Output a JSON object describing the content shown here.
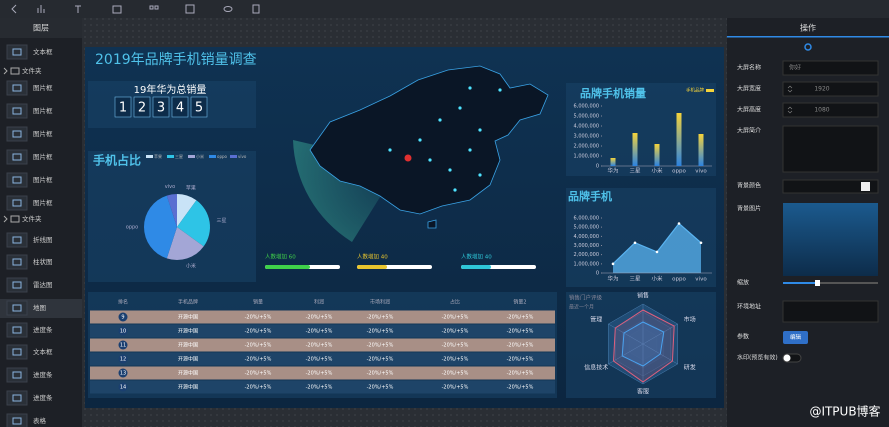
{
  "layers": {
    "title": "图层",
    "items": [
      "文本框",
      "文件夹",
      "图片框",
      "图片框",
      "图片框",
      "图片框",
      "图片框",
      "图片框",
      "文件夹",
      "折线图",
      "柱状图",
      "雷达图",
      "地图",
      "进度条",
      "文本框",
      "进度条",
      "进度条",
      "表格"
    ]
  },
  "settings": {
    "title": "操作",
    "fields": [
      {
        "label": "大屏名称",
        "value": "你好"
      },
      {
        "label": "大屏宽度",
        "value": 1920
      },
      {
        "label": "大屏高度",
        "value": 1080
      },
      {
        "label": "大屏简介"
      },
      {
        "label": "背景颜色"
      },
      {
        "label": "背景图片"
      },
      {
        "label": "缩放"
      },
      {
        "label": "环境地址"
      },
      {
        "label": "参数",
        "button": "编辑"
      },
      {
        "label": "水印(预览有效)"
      }
    ]
  },
  "dashboard": {
    "title": "2019年品牌手机销量调查",
    "counter": {
      "title": "19年华为总销量",
      "digits": [
        1,
        2,
        3,
        4,
        5
      ]
    },
    "progress": [
      {
        "label": "人数增加 60",
        "value": 60,
        "color": "#3fd14a"
      },
      {
        "label": "人数增加 40",
        "value": 40,
        "color": "#e8c52e"
      },
      {
        "label": "人数增加 40",
        "value": 40,
        "color": "#2ec6d8"
      }
    ],
    "table": {
      "headers": [
        "排名",
        "手机品牌",
        "销量",
        "利润",
        "市场利润",
        "占比",
        "销量2"
      ],
      "rows": [
        [
          9,
          "开源中国",
          "-20%/+5%",
          "-20%/+5%",
          "-20%/+5%",
          "-20%/+5%",
          "-20%/+5%"
        ],
        [
          10,
          "开源中国",
          "-20%/+5%",
          "-20%/+5%",
          "-20%/+5%",
          "-20%/+5%",
          "-20%/+5%"
        ],
        [
          11,
          "开源中国",
          "-20%/+5%",
          "-20%/+5%",
          "-20%/+5%",
          "-20%/+5%",
          "-20%/+5%"
        ],
        [
          12,
          "开源中国",
          "-20%/+5%",
          "-20%/+5%",
          "-20%/+5%",
          "-20%/+5%",
          "-20%/+5%"
        ],
        [
          13,
          "开源中国",
          "-20%/+5%",
          "-20%/+5%",
          "-20%/+5%",
          "-20%/+5%",
          "-20%/+5%"
        ],
        [
          14,
          "开源中国",
          "-20%/+5%",
          "-20%/+5%",
          "-20%/+5%",
          "-20%/+5%",
          "-20%/+5%"
        ]
      ]
    }
  },
  "watermark": "@ITPUB博客",
  "chart_data": [
    {
      "type": "pie",
      "title": "手机占比",
      "categories": [
        "苹果",
        "三星",
        "小米",
        "oppo",
        "vivo"
      ],
      "values": [
        10,
        25,
        20,
        40,
        5
      ],
      "colors": [
        "#c9e3f7",
        "#2ec4e6",
        "#a3a6d6",
        "#2f8ae6",
        "#5a6fd1"
      ]
    },
    {
      "type": "bar",
      "title": "品牌手机销量",
      "legend": "手机品牌",
      "categories": [
        "华为",
        "三星",
        "小米",
        "oppo",
        "vivo"
      ],
      "values": [
        800000,
        3300000,
        2200000,
        5300000,
        3200000
      ],
      "colors": [
        "#f5d33a",
        "#2c83e0"
      ],
      "ylim": [
        0,
        6000000
      ],
      "yticks": [
        0,
        {
          "value": 1000000,
          "label": "1,000,000"
        },
        {
          "value": 2000000,
          "label": "2,000,000"
        },
        {
          "value": 3000000,
          "label": "3,000,000"
        },
        {
          "value": 4000000,
          "label": "4,000,000"
        },
        {
          "value": 5000000,
          "label": "5,000,000"
        },
        {
          "value": 6000000,
          "label": "6,000,000"
        }
      ]
    },
    {
      "type": "line",
      "area": true,
      "title": "品牌手机",
      "categories": [
        "华为",
        "三星",
        "小米",
        "oppo",
        "vivo"
      ],
      "values": [
        1000000,
        3300000,
        2300000,
        5400000,
        3300000
      ],
      "color": "#5ab3f0",
      "ylim": [
        0,
        6000000
      ],
      "yticks": [
        0,
        {
          "value": 1000000,
          "label": "1,000,000"
        },
        {
          "value": 2000000,
          "label": "2,000,000"
        },
        {
          "value": 3000000,
          "label": "3,000,000"
        },
        {
          "value": 4000000,
          "label": "4,000,000"
        },
        {
          "value": 5000000,
          "label": "5,000,000"
        },
        {
          "value": 6000000,
          "label": "6,000,000"
        }
      ]
    },
    {
      "type": "radar",
      "title": "销售门户评级",
      "subtitle": "最近一个月",
      "categories": [
        "销售",
        "市场",
        "研发",
        "客服",
        "信息技术",
        "管理"
      ],
      "rlim": [
        0,
        100
      ],
      "series": [
        {
          "color": "#e0607e",
          "values": [
            85,
            90,
            85,
            95,
            85,
            80
          ]
        },
        {
          "color": "#4aa3f0",
          "values": [
            55,
            60,
            50,
            55,
            60,
            55
          ]
        }
      ]
    }
  ]
}
